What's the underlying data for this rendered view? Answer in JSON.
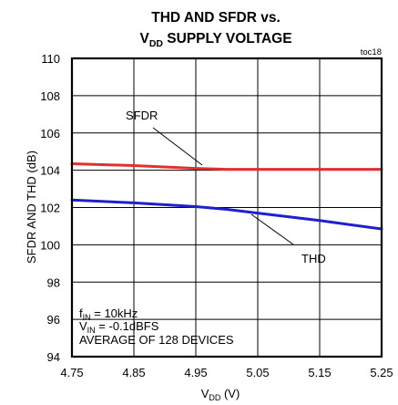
{
  "chart_data": {
    "type": "line",
    "title_line1": "THD AND SFDR vs.",
    "title_line2_main": "V",
    "title_line2_sub": "DD",
    "title_line2_rest": " SUPPLY VOLTAGE",
    "figure_id": "toc18",
    "xlabel_main": "V",
    "xlabel_sub": "DD",
    "xlabel_rest": " (V)",
    "ylabel": "SFDR AND THD (dB)",
    "xlim": [
      4.75,
      5.25
    ],
    "ylim": [
      94,
      110
    ],
    "xticks": [
      "4.75",
      "4.85",
      "4.95",
      "5.05",
      "5.15",
      "5.25"
    ],
    "yticks": [
      "94",
      "96",
      "98",
      "100",
      "102",
      "104",
      "106",
      "108",
      "110"
    ],
    "grid": true,
    "series": [
      {
        "name": "SFDR",
        "color": "#e03030",
        "x": [
          4.75,
          4.85,
          4.95,
          5.0,
          5.05,
          5.15,
          5.25
        ],
        "y": [
          104.35,
          104.25,
          104.1,
          104.05,
          104.05,
          104.05,
          104.05
        ]
      },
      {
        "name": "THD",
        "color": "#1f1fcc",
        "x": [
          4.75,
          4.85,
          4.95,
          5.0,
          5.05,
          5.15,
          5.25
        ],
        "y": [
          102.4,
          102.25,
          102.05,
          101.9,
          101.7,
          101.3,
          100.85
        ]
      }
    ],
    "annotations": {
      "sfdr_label": "SFDR",
      "thd_label": "THD",
      "cond_line1_main": "f",
      "cond_line1_sub": "IN",
      "cond_line1_rest": " = 10kHz",
      "cond_line2_main": "V",
      "cond_line2_sub": "IN",
      "cond_line2_rest": " = -0.1dBFS",
      "cond_line3": "AVERAGE OF 128 DEVICES"
    }
  }
}
